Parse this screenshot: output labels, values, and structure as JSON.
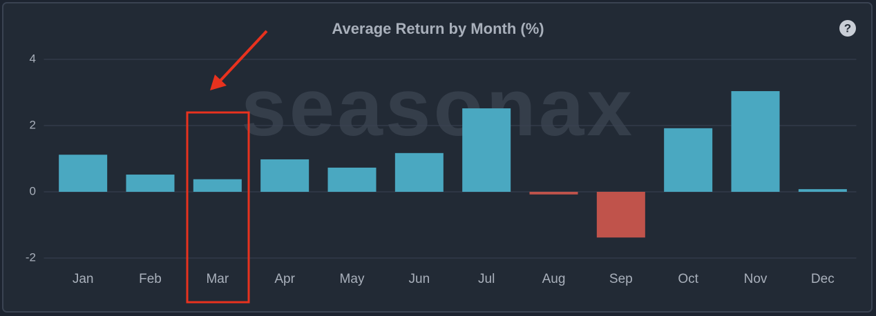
{
  "chart_data": {
    "type": "bar",
    "title": "Average Return by Month (%)",
    "watermark": "seasonax",
    "help_icon": "?",
    "categories": [
      "Jan",
      "Feb",
      "Mar",
      "Apr",
      "May",
      "Jun",
      "Jul",
      "Aug",
      "Sep",
      "Oct",
      "Nov",
      "Dec"
    ],
    "values": [
      1.12,
      0.52,
      0.38,
      0.98,
      0.73,
      1.17,
      2.52,
      -0.08,
      -1.38,
      1.92,
      3.04,
      0.08
    ],
    "positive_color": "#4aa8c1",
    "negative_color": "#c0534b",
    "ylim": [
      -2,
      4
    ],
    "yticks": [
      -2,
      0,
      2,
      4
    ],
    "grid": true
  }
}
